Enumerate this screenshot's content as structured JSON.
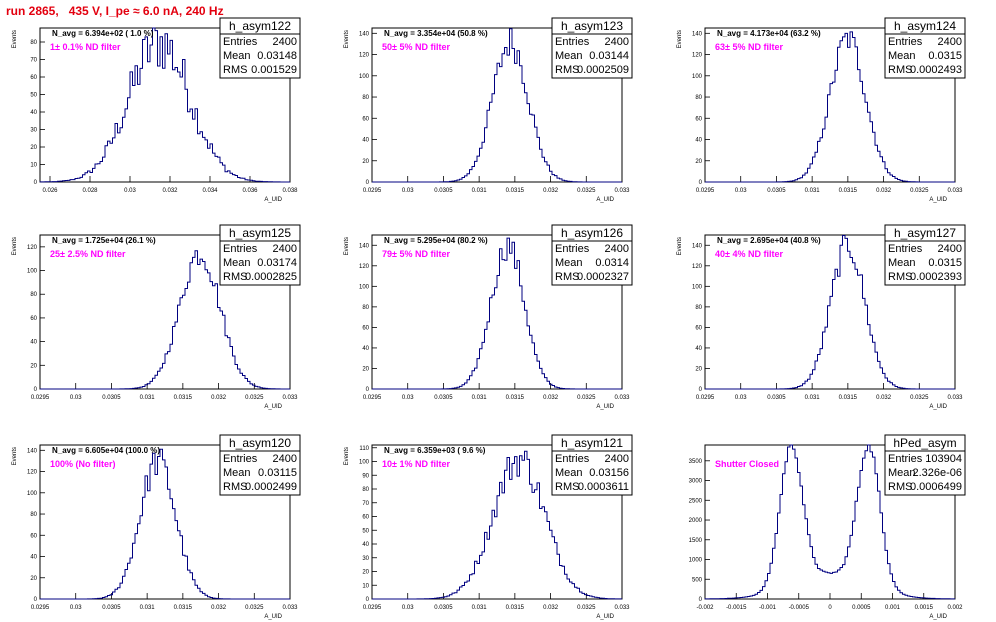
{
  "header": "run 2865,   435 V, I_pe ≈ 6.0 nA, 240 Hz",
  "colors": {
    "header": "#e3000f",
    "hist": "#000080",
    "filter_label": "#ff00ff"
  },
  "chart_data": [
    {
      "type": "histogram",
      "title": "h_asym122",
      "navg": "N_avg = 6.394e+02 ( 1.0 %)",
      "label": "1± 0.1% ND filter",
      "entries": "2400",
      "mean": "0.03148",
      "rms": "0.001529",
      "xlabel": "A_UID",
      "ylabel": "Events",
      "xlim": [
        0.0255,
        0.038
      ],
      "ylim": [
        0,
        88
      ],
      "xticks": [
        "0.026",
        "0.028",
        "0.03",
        "0.032",
        "0.034",
        "0.036",
        "0.038"
      ],
      "xtick_vals": [
        0.026,
        0.028,
        0.03,
        0.032,
        0.034,
        0.036,
        0.038
      ],
      "yticks": [
        0,
        10,
        20,
        30,
        40,
        50,
        60,
        70,
        80
      ],
      "dist": {
        "mu": 0.03148,
        "sigma": 0.001529,
        "peak": 80,
        "noise": 0.22
      }
    },
    {
      "type": "histogram",
      "title": "h_asym123",
      "navg": "N_avg = 3.354e+04 (50.8 %)",
      "label": "50± 5% ND filter",
      "entries": "2400",
      "mean": "0.03144",
      "rms": "0.0002509",
      "xlabel": "A_UID",
      "ylabel": "Events",
      "xlim": [
        0.0295,
        0.033
      ],
      "ylim": [
        0,
        145
      ],
      "xticks": [
        "0.0295",
        "0.03",
        "0.0305",
        "0.031",
        "0.0315",
        "0.032",
        "0.0325",
        "0.033"
      ],
      "xtick_vals": [
        0.0295,
        0.03,
        0.0305,
        0.031,
        0.0315,
        0.032,
        0.0325,
        0.033
      ],
      "yticks": [
        0,
        20,
        40,
        60,
        80,
        100,
        120,
        140
      ],
      "dist": {
        "mu": 0.03144,
        "sigma": 0.0002509,
        "peak": 132,
        "noise": 0.12
      }
    },
    {
      "type": "histogram",
      "title": "h_asym124",
      "navg": "N_avg = 4.173e+04 (63.2 %)",
      "label": "63± 5% ND filter",
      "entries": "2400",
      "mean": "0.0315",
      "rms": "0.0002493",
      "xlabel": "A_UID",
      "ylabel": "Events",
      "xlim": [
        0.0295,
        0.033
      ],
      "ylim": [
        0,
        145
      ],
      "xticks": [
        "0.0295",
        "0.03",
        "0.0305",
        "0.031",
        "0.0315",
        "0.032",
        "0.0325",
        "0.033"
      ],
      "xtick_vals": [
        0.0295,
        0.03,
        0.0305,
        0.031,
        0.0315,
        0.032,
        0.0325,
        0.033
      ],
      "yticks": [
        0,
        20,
        40,
        60,
        80,
        100,
        120,
        140
      ],
      "dist": {
        "mu": 0.0315,
        "sigma": 0.0002493,
        "peak": 135,
        "noise": 0.1
      }
    },
    {
      "type": "histogram",
      "title": "h_asym125",
      "navg": "N_avg = 1.725e+04 (26.1 %)",
      "label": "25± 2.5% ND filter",
      "entries": "2400",
      "mean": "0.03174",
      "rms": "0.0002825",
      "xlabel": "A_UID",
      "ylabel": "Events",
      "xlim": [
        0.0295,
        0.033
      ],
      "ylim": [
        0,
        130
      ],
      "xticks": [
        "0.0295",
        "0.03",
        "0.0305",
        "0.031",
        "0.0315",
        "0.032",
        "0.0325",
        "0.033"
      ],
      "xtick_vals": [
        0.0295,
        0.03,
        0.0305,
        0.031,
        0.0315,
        0.032,
        0.0325,
        0.033
      ],
      "yticks": [
        0,
        20,
        40,
        60,
        80,
        100,
        120
      ],
      "dist": {
        "mu": 0.03174,
        "sigma": 0.0002825,
        "peak": 115,
        "noise": 0.1
      }
    },
    {
      "type": "histogram",
      "title": "h_asym126",
      "navg": "N_avg = 5.295e+04 (80.2 %)",
      "label": "79± 5% ND filter",
      "entries": "2400",
      "mean": "0.0314",
      "rms": "0.0002327",
      "xlabel": "A_UID",
      "ylabel": "Events",
      "xlim": [
        0.0295,
        0.033
      ],
      "ylim": [
        0,
        150
      ],
      "xticks": [
        "0.0295",
        "0.03",
        "0.0305",
        "0.031",
        "0.0315",
        "0.032",
        "0.0325",
        "0.033"
      ],
      "xtick_vals": [
        0.0295,
        0.03,
        0.0305,
        0.031,
        0.0315,
        0.032,
        0.0325,
        0.033
      ],
      "yticks": [
        0,
        20,
        40,
        60,
        80,
        100,
        120,
        140
      ],
      "dist": {
        "mu": 0.0314,
        "sigma": 0.0002327,
        "peak": 140,
        "noise": 0.1
      }
    },
    {
      "type": "histogram",
      "title": "h_asym127",
      "navg": "N_avg = 2.695e+04 (40.8 %)",
      "label": "40± 4% ND filter",
      "entries": "2400",
      "mean": "0.0315",
      "rms": "0.0002393",
      "xlabel": "A_UID",
      "ylabel": "Events",
      "xlim": [
        0.0295,
        0.033
      ],
      "ylim": [
        0,
        150
      ],
      "xticks": [
        "0.0295",
        "0.03",
        "0.0305",
        "0.031",
        "0.0315",
        "0.032",
        "0.0325",
        "0.033"
      ],
      "xtick_vals": [
        0.0295,
        0.03,
        0.0305,
        0.031,
        0.0315,
        0.032,
        0.0325,
        0.033
      ],
      "yticks": [
        0,
        20,
        40,
        60,
        80,
        100,
        120,
        140
      ],
      "dist": {
        "mu": 0.0315,
        "sigma": 0.0002393,
        "peak": 140,
        "noise": 0.1
      }
    },
    {
      "type": "histogram",
      "title": "h_asym120",
      "navg": "N_avg = 6.605e+04 (100.0 %)",
      "label": "100% (No filter)",
      "entries": "2400",
      "mean": "0.03115",
      "rms": "0.0002499",
      "xlabel": "A_UID",
      "ylabel": "Events",
      "xlim": [
        0.0295,
        0.033
      ],
      "ylim": [
        0,
        145
      ],
      "xticks": [
        "0.0295",
        "0.03",
        "0.0305",
        "0.031",
        "0.0315",
        "0.032",
        "0.0325",
        "0.033"
      ],
      "xtick_vals": [
        0.0295,
        0.03,
        0.0305,
        0.031,
        0.0315,
        0.032,
        0.0325,
        0.033
      ],
      "yticks": [
        0,
        20,
        40,
        60,
        80,
        100,
        120,
        140
      ],
      "dist": {
        "mu": 0.03115,
        "sigma": 0.0002499,
        "peak": 130,
        "noise": 0.12
      }
    },
    {
      "type": "histogram",
      "title": "h_asym121",
      "navg": "N_avg = 6.359e+03 ( 9.6 %)",
      "label": "10± 1% ND filter",
      "entries": "2400",
      "mean": "0.03156",
      "rms": "0.0003611",
      "xlabel": "A_UID",
      "ylabel": "Events",
      "xlim": [
        0.0295,
        0.033
      ],
      "ylim": [
        0,
        112
      ],
      "xticks": [
        "0.0295",
        "0.03",
        "0.0305",
        "0.031",
        "0.0315",
        "0.032",
        "0.0325",
        "0.033"
      ],
      "xtick_vals": [
        0.0295,
        0.03,
        0.0305,
        0.031,
        0.0315,
        0.032,
        0.0325,
        0.033
      ],
      "yticks": [
        0,
        10,
        20,
        30,
        40,
        50,
        60,
        70,
        80,
        90,
        100,
        110
      ],
      "dist": {
        "mu": 0.03156,
        "sigma": 0.0003611,
        "peak": 102,
        "noise": 0.13
      }
    },
    {
      "type": "histogram",
      "title": "hPed_asym",
      "navg": "",
      "label": "Shutter Closed",
      "entries": "103904",
      "mean": "2.326e-06",
      "rms": "0.0006499",
      "xlabel": "A_UID",
      "ylabel": "",
      "xlim": [
        -0.002,
        0.002
      ],
      "ylim": [
        0,
        3900
      ],
      "xticks": [
        "-0.002",
        "-0.0015",
        "-0.001",
        "-0.0005",
        "0",
        "0.0005",
        "0.001",
        "0.0015",
        "0.002"
      ],
      "xtick_vals": [
        -0.002,
        -0.0015,
        -0.001,
        -0.0005,
        0,
        0.0005,
        0.001,
        0.0015,
        0.002
      ],
      "yticks": [
        0,
        500,
        1000,
        1500,
        2000,
        2500,
        3000,
        3500
      ],
      "dist": {
        "bimodal": true,
        "mu1": -0.00062,
        "mu2": 0.00062,
        "sigma": 0.00018,
        "peak": 3550,
        "noise": 0.03
      }
    }
  ]
}
